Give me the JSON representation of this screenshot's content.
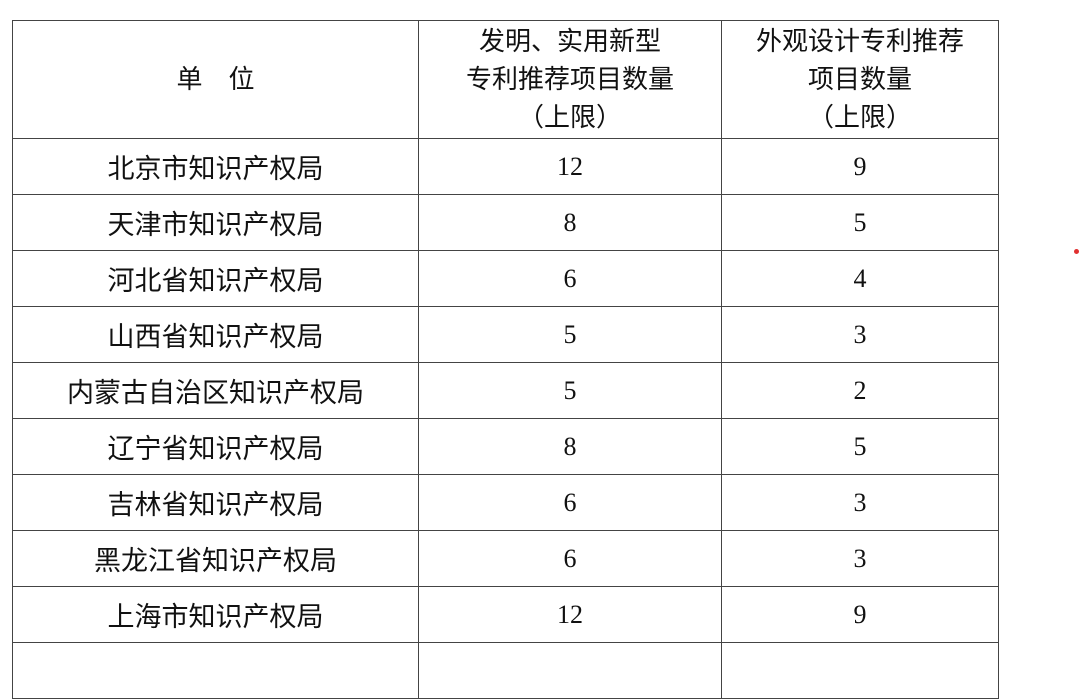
{
  "table": {
    "headers": [
      "单　位",
      "发明、实用新型\n专利推荐项目数量\n（上限）",
      "外观设计专利推荐\n项目数量\n（上限）"
    ],
    "rows": [
      [
        "北京市知识产权局",
        "12",
        "9"
      ],
      [
        "天津市知识产权局",
        "8",
        "5"
      ],
      [
        "河北省知识产权局",
        "6",
        "4"
      ],
      [
        "山西省知识产权局",
        "5",
        "3"
      ],
      [
        "内蒙古自治区知识产权局",
        "5",
        "2"
      ],
      [
        "辽宁省知识产权局",
        "8",
        "5"
      ],
      [
        "吉林省知识产权局",
        "6",
        "3"
      ],
      [
        "黑龙江省知识产权局",
        "6",
        "3"
      ],
      [
        "上海市知识产权局",
        "12",
        "9"
      ]
    ]
  },
  "colors": {
    "border": "#444444",
    "marker": "#e03030"
  }
}
